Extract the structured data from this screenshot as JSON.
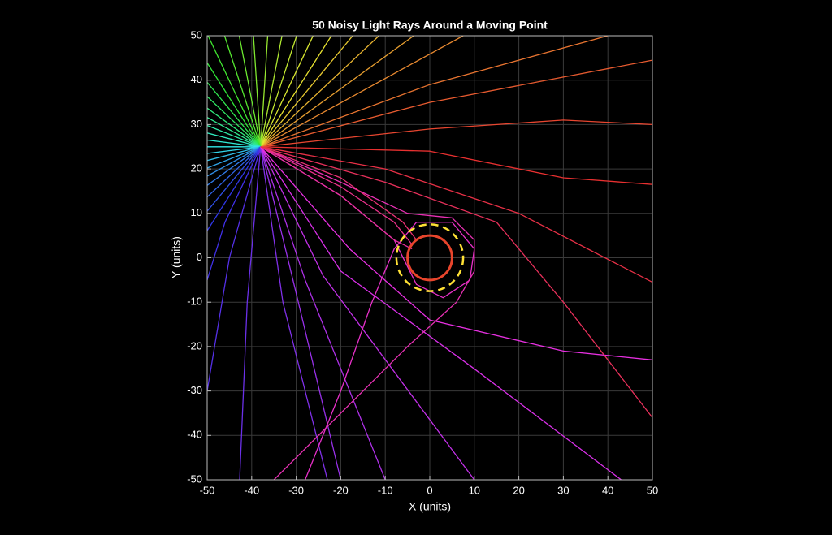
{
  "chart_data": {
    "type": "line",
    "title": "50 Noisy Light Rays Around a Moving Point",
    "x_label": "X (units)",
    "y_label": "Y (units)",
    "xlim": [
      -50,
      50
    ],
    "ylim": [
      -50,
      50
    ],
    "xticks": [
      -50,
      -40,
      -30,
      -20,
      -10,
      0,
      10,
      20,
      30,
      40,
      50
    ],
    "yticks": [
      -50,
      -40,
      -30,
      -20,
      -10,
      0,
      10,
      20,
      30,
      40,
      50
    ],
    "grid": true,
    "circles": [
      {
        "center": [
          0,
          0
        ],
        "radius": 5,
        "color": "#e8452c"
      },
      {
        "center": [
          0,
          0
        ],
        "radius": 7.5,
        "color": "#ffe135",
        "dashed": true
      }
    ],
    "series": [
      {
        "color": "hsl(0,80%,55%)",
        "x": [
          -38,
          0,
          30,
          50
        ],
        "y": [
          25,
          24,
          18,
          16.5
        ]
      },
      {
        "color": "hsl(7,80%,55%)",
        "x": [
          -38,
          0,
          30,
          50
        ],
        "y": [
          25,
          29,
          31,
          30
        ]
      },
      {
        "color": "hsl(14,80%,55%)",
        "x": [
          -38,
          0,
          50
        ],
        "y": [
          25,
          35,
          44.5
        ]
      },
      {
        "color": "hsl(22,80%,55%)",
        "x": [
          -38,
          0,
          40
        ],
        "y": [
          25,
          39,
          50
        ]
      },
      {
        "color": "hsl(29,80%,55%)",
        "x": [
          -38,
          7.5
        ],
        "y": [
          25,
          50
        ]
      },
      {
        "color": "hsl(36,80%,55%)",
        "x": [
          -38,
          -3.6
        ],
        "y": [
          25,
          50
        ]
      },
      {
        "color": "hsl(43,80%,55%)",
        "x": [
          -38,
          -11.4
        ],
        "y": [
          25,
          50
        ]
      },
      {
        "color": "hsl(50,80%,55%)",
        "x": [
          -38,
          -17.3
        ],
        "y": [
          25,
          50
        ]
      },
      {
        "color": "hsl(58,80%,55%)",
        "x": [
          -38,
          -22.1
        ],
        "y": [
          25,
          50
        ]
      },
      {
        "color": "hsl(65,80%,55%)",
        "x": [
          -38,
          -26.2
        ],
        "y": [
          25,
          50
        ]
      },
      {
        "color": "hsl(72,80%,55%)",
        "x": [
          -38,
          -29.9
        ],
        "y": [
          25,
          50
        ]
      },
      {
        "color": "hsl(79,80%,55%)",
        "x": [
          -38,
          -33.2
        ],
        "y": [
          25,
          50
        ]
      },
      {
        "color": "hsl(86,80%,55%)",
        "x": [
          -38,
          -36.4
        ],
        "y": [
          25,
          50
        ]
      },
      {
        "color": "hsl(94,80%,55%)",
        "x": [
          -38,
          -39.6
        ],
        "y": [
          25,
          50
        ]
      },
      {
        "color": "hsl(101,80%,55%)",
        "x": [
          -38,
          -42.8
        ],
        "y": [
          25,
          50
        ]
      },
      {
        "color": "hsl(108,80%,55%)",
        "x": [
          -38,
          -46.1
        ],
        "y": [
          25,
          50
        ]
      },
      {
        "color": "hsl(115,80%,55%)",
        "x": [
          -38,
          -49.8
        ],
        "y": [
          25,
          50
        ]
      },
      {
        "color": "hsl(122,80%,55%)",
        "x": [
          -38,
          -50
        ],
        "y": [
          25,
          43.9
        ]
      },
      {
        "color": "hsl(130,80%,55%)",
        "x": [
          -38,
          -50
        ],
        "y": [
          25,
          39.5
        ]
      },
      {
        "color": "hsl(137,80%,55%)",
        "x": [
          -38,
          -50
        ],
        "y": [
          25,
          36.3
        ]
      },
      {
        "color": "hsl(144,80%,55%)",
        "x": [
          -38,
          -50
        ],
        "y": [
          25,
          33.7
        ]
      },
      {
        "color": "hsl(151,80%,55%)",
        "x": [
          -38,
          -50
        ],
        "y": [
          25,
          31.6
        ]
      },
      {
        "color": "hsl(158,80%,55%)",
        "x": [
          -38,
          -50
        ],
        "y": [
          25,
          29.8
        ]
      },
      {
        "color": "hsl(166,80%,55%)",
        "x": [
          -38,
          -50
        ],
        "y": [
          25,
          28.1
        ]
      },
      {
        "color": "hsl(173,80%,55%)",
        "x": [
          -38,
          -50
        ],
        "y": [
          25,
          26.5
        ]
      },
      {
        "color": "hsl(180,80%,55%)",
        "x": [
          -38,
          -50
        ],
        "y": [
          25,
          25
        ]
      },
      {
        "color": "hsl(187,80%,55%)",
        "x": [
          -38,
          -50
        ],
        "y": [
          25,
          23.5
        ]
      },
      {
        "color": "hsl(194,80%,55%)",
        "x": [
          -38,
          -50
        ],
        "y": [
          25,
          21.9
        ]
      },
      {
        "color": "hsl(202,80%,55%)",
        "x": [
          -38,
          -50
        ],
        "y": [
          25,
          20.2
        ]
      },
      {
        "color": "hsl(209,80%,55%)",
        "x": [
          -38,
          -50
        ],
        "y": [
          25,
          18.4
        ]
      },
      {
        "color": "hsl(216,80%,55%)",
        "x": [
          -38,
          -50
        ],
        "y": [
          25,
          16.3
        ]
      },
      {
        "color": "hsl(223,80%,55%)",
        "x": [
          -38,
          -50
        ],
        "y": [
          25,
          13.7
        ]
      },
      {
        "color": "hsl(230,80%,55%)",
        "x": [
          -38,
          -50
        ],
        "y": [
          25,
          10.5
        ]
      },
      {
        "color": "hsl(238,80%,55%)",
        "x": [
          -38,
          -50
        ],
        "y": [
          25,
          6.1
        ]
      },
      {
        "color": "hsl(245,80%,55%)",
        "x": [
          -38,
          -46,
          -50
        ],
        "y": [
          25,
          8,
          -5
        ]
      },
      {
        "color": "hsl(252,80%,55%)",
        "x": [
          -38,
          -45,
          -50
        ],
        "y": [
          25,
          0,
          -30
        ]
      },
      {
        "color": "hsl(259,80%,55%)",
        "x": [
          -38,
          -41,
          -42.7
        ],
        "y": [
          25,
          -10,
          -50
        ]
      },
      {
        "color": "hsl(266,80%,55%)",
        "x": [
          -38,
          -33,
          -23
        ],
        "y": [
          25,
          -10,
          -50
        ]
      },
      {
        "color": "hsl(274,80%,55%)",
        "x": [
          -38,
          -30,
          -20
        ],
        "y": [
          25,
          -8,
          -50
        ]
      },
      {
        "color": "hsl(281,80%,55%)",
        "x": [
          -38,
          -28,
          -10
        ],
        "y": [
          25,
          -5,
          -50
        ]
      },
      {
        "color": "hsl(288,80%,55%)",
        "x": [
          -38,
          -24,
          10
        ],
        "y": [
          25,
          -4,
          -50
        ]
      },
      {
        "color": "hsl(295,80%,55%)",
        "x": [
          -38,
          -20,
          10,
          43
        ],
        "y": [
          25,
          -3,
          -25,
          -50
        ]
      },
      {
        "color": "hsl(302,80%,55%)",
        "x": [
          -38,
          -18,
          0,
          30,
          50
        ],
        "y": [
          25,
          2,
          -14,
          -21,
          -23
        ]
      },
      {
        "color": "hsl(310,80%,55%)",
        "x": [
          -38,
          -20,
          -8,
          -3,
          3,
          9,
          10,
          5,
          -3,
          -8,
          -13,
          -20,
          -28
        ],
        "y": [
          25,
          14,
          4,
          -6,
          -9,
          -5,
          2,
          8,
          8,
          2,
          -10,
          -30,
          -50
        ]
      },
      {
        "color": "hsl(317,80%,55%)",
        "x": [
          -38,
          -20,
          -5,
          5,
          10,
          10,
          6,
          -5,
          -35
        ],
        "y": [
          25,
          17,
          10,
          9,
          4,
          -3,
          -10,
          -20,
          -50
        ]
      },
      {
        "color": "hsl(324,80%,55%)",
        "x": [
          -38,
          -20,
          -8,
          -4
        ],
        "y": [
          25,
          14,
          4,
          2
        ]
      },
      {
        "color": "hsl(331,80%,55%)",
        "x": [
          -38,
          -20,
          -8,
          -4
        ],
        "y": [
          25,
          16,
          8,
          3
        ]
      },
      {
        "color": "hsl(338,80%,55%)",
        "x": [
          -38,
          -20,
          -6,
          -3
        ],
        "y": [
          25,
          18,
          8,
          4
        ]
      },
      {
        "color": "hsl(346,80%,55%)",
        "x": [
          -38,
          -10,
          15,
          30,
          50
        ],
        "y": [
          25,
          17,
          8,
          -10,
          -36
        ]
      },
      {
        "color": "hsl(353,80%,55%)",
        "x": [
          -38,
          -10,
          20,
          50
        ],
        "y": [
          25,
          20,
          10,
          -5.5
        ]
      }
    ]
  }
}
